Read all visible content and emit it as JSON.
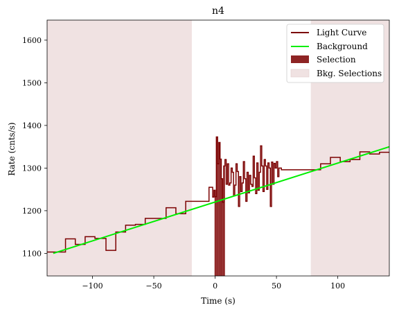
{
  "chart_data": {
    "type": "line",
    "title": "n4",
    "xlabel": "Time (s)",
    "ylabel": "Rate (cnts/s)",
    "xlim": [
      -137,
      142
    ],
    "ylim": [
      1047,
      1647
    ],
    "xticks": [
      -100,
      -50,
      0,
      50,
      100
    ],
    "yticks": [
      1100,
      1200,
      1300,
      1400,
      1500,
      1600
    ],
    "xtick_labels": [
      "−100",
      "−50",
      "0",
      "50",
      "100"
    ],
    "ytick_labels": [
      "1100",
      "1200",
      "1300",
      "1400",
      "1500",
      "1600"
    ],
    "legend": {
      "position": "top-right",
      "entries": [
        {
          "label": "Light Curve",
          "kind": "line",
          "color": "#7b0000"
        },
        {
          "label": "Background",
          "kind": "line",
          "color": "#00ee00"
        },
        {
          "label": "Selection",
          "kind": "patch",
          "color": "#8e2424"
        },
        {
          "label": "Bkg. Selections",
          "kind": "patch",
          "color": "#f0e2e2"
        }
      ]
    },
    "colors": {
      "light_curve": "#7b0000",
      "background": "#00ee00",
      "selection": "#8e2424",
      "bkg_selection": "#f0e2e2"
    },
    "background_fit": {
      "x": [
        -132,
        142
      ],
      "y": [
        1100,
        1350
      ]
    },
    "selection_interval": [
      -0.5,
      8
    ],
    "bkg_selection_intervals": [
      [
        -137,
        -19
      ],
      [
        78,
        142
      ]
    ],
    "light_curve": {
      "x": [
        -137,
        -122,
        -114,
        -106,
        -98,
        -89,
        -81,
        -73,
        -65,
        -57,
        -48,
        -40,
        -32,
        -24,
        -14,
        -5,
        -2,
        -1,
        0,
        1,
        2,
        3,
        4,
        5,
        6,
        7,
        8,
        9,
        10,
        11,
        12,
        13,
        14,
        15,
        16,
        17,
        18,
        19,
        20,
        21,
        22,
        23,
        24,
        25,
        26,
        27,
        28,
        29,
        30,
        31,
        32,
        33,
        34,
        35,
        36,
        37,
        38,
        39,
        40,
        41,
        42,
        43,
        44,
        45,
        46,
        47,
        48,
        49,
        50,
        51,
        52,
        53,
        54,
        55,
        56,
        57,
        58,
        59,
        60,
        61,
        62,
        67,
        78,
        86,
        94,
        102,
        110,
        118,
        126,
        134,
        142
      ],
      "y": [
        1103,
        1134,
        1121,
        1139,
        1135,
        1107,
        1150,
        1166,
        1168,
        1182,
        1182,
        1207,
        1193,
        1222,
        1222,
        1255,
        1232,
        1248,
        1233,
        1373,
        1310,
        1360,
        1321,
        1275,
        1220,
        1305,
        1320,
        1262,
        1310,
        1260,
        1265,
        1300,
        1290,
        1235,
        1260,
        1310,
        1292,
        1210,
        1280,
        1245,
        1265,
        1315,
        1275,
        1222,
        1290,
        1242,
        1283,
        1262,
        1257,
        1328,
        1277,
        1240,
        1312,
        1248,
        1290,
        1352,
        1305,
        1245,
        1320,
        1305,
        1250,
        1312,
        1300,
        1210,
        1314,
        1262,
        1311,
        1300,
        1315,
        1280,
        1300,
        1300,
        1296,
        1296,
        1296,
        1296,
        1296,
        1296,
        1296,
        1296,
        1296,
        1296,
        1296,
        1310,
        1325,
        1315,
        1320,
        1338,
        1333,
        1337,
        1337
      ]
    }
  }
}
